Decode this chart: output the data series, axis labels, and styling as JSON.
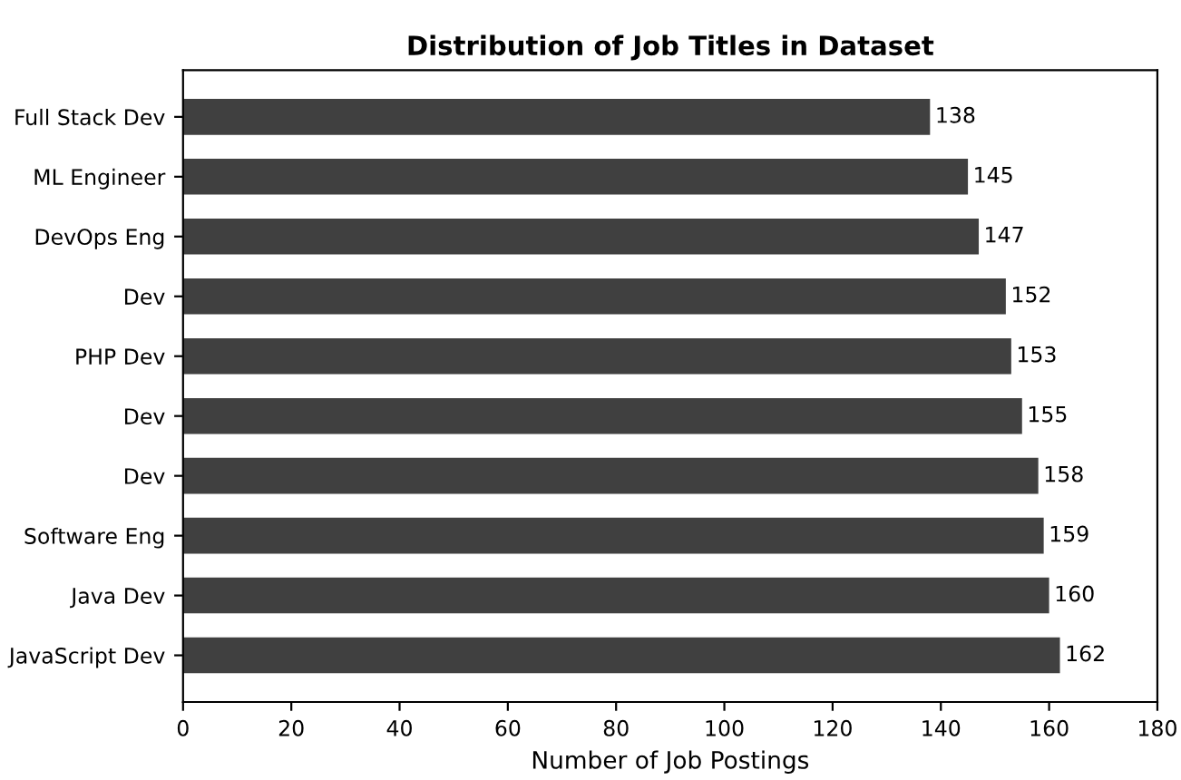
{
  "chart_data": {
    "type": "bar",
    "orientation": "horizontal",
    "title": "Distribution of Job Titles in Dataset",
    "xlabel": "Number of Job Postings",
    "categories": [
      "Full Stack Dev",
      "ML Engineer",
      "DevOps Eng",
      "Dev",
      "PHP Dev",
      "Dev",
      "Dev",
      "Software Eng",
      "Java Dev",
      "JavaScript Dev"
    ],
    "values": [
      138,
      145,
      147,
      152,
      153,
      155,
      158,
      159,
      160,
      162
    ],
    "color": "#404040",
    "xlim": [
      0,
      180
    ],
    "xticks": [
      0,
      20,
      40,
      60,
      80,
      100,
      120,
      140,
      160,
      180
    ],
    "data_labels": true,
    "grid": false,
    "legend": false
  }
}
